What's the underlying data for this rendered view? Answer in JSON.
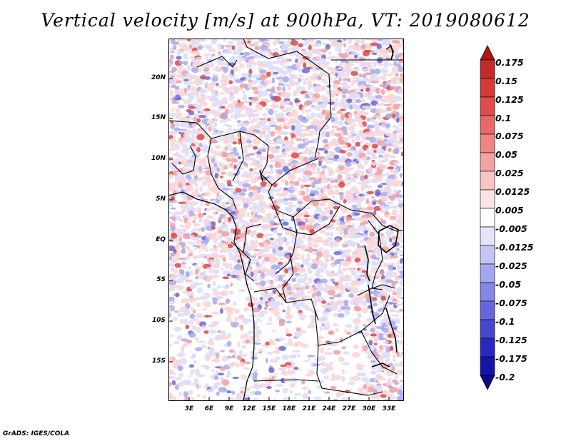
{
  "title": "Vertical velocity [m/s] at 900hPa, VT: 2019080612",
  "credit": "GrADS: IGES/COLA",
  "latitude_labels": [
    "20N",
    "15N",
    "10N",
    "5N",
    "EQ",
    "5S",
    "10S",
    "15S"
  ],
  "longitude_labels": [
    "3E",
    "6E",
    "9E",
    "12E",
    "15E",
    "18E",
    "21E",
    "24E",
    "27E",
    "30E",
    "33E"
  ],
  "colorbar": {
    "labels": [
      "0.175",
      "0.15",
      "0.125",
      "0.1",
      "0.075",
      "0.05",
      "0.025",
      "0.0125",
      "0.005",
      "-0.005",
      "-0.0125",
      "-0.025",
      "-0.05",
      "-0.075",
      "-0.1",
      "-0.125",
      "-0.175",
      "-0.2"
    ],
    "colors": [
      "#b01818",
      "#c42a2a",
      "#d43a3a",
      "#e04c4c",
      "#e86868",
      "#ee8484",
      "#f3a2a2",
      "#f8c4c4",
      "#fde4e4",
      "#ffffff",
      "#e4e4fb",
      "#c6c6f5",
      "#a6a6ee",
      "#8686e6",
      "#6666dc",
      "#4646d0",
      "#2828c0",
      "#1414a8",
      "#0a0a8a"
    ]
  },
  "field_colors": {
    "strong_up": "#d94848",
    "up": "#f0a0a0",
    "weak_up": "#f9d4d4",
    "weak_down": "#dcdcfa",
    "down": "#a8a8ee",
    "strong_down": "#6a6ad8"
  }
}
